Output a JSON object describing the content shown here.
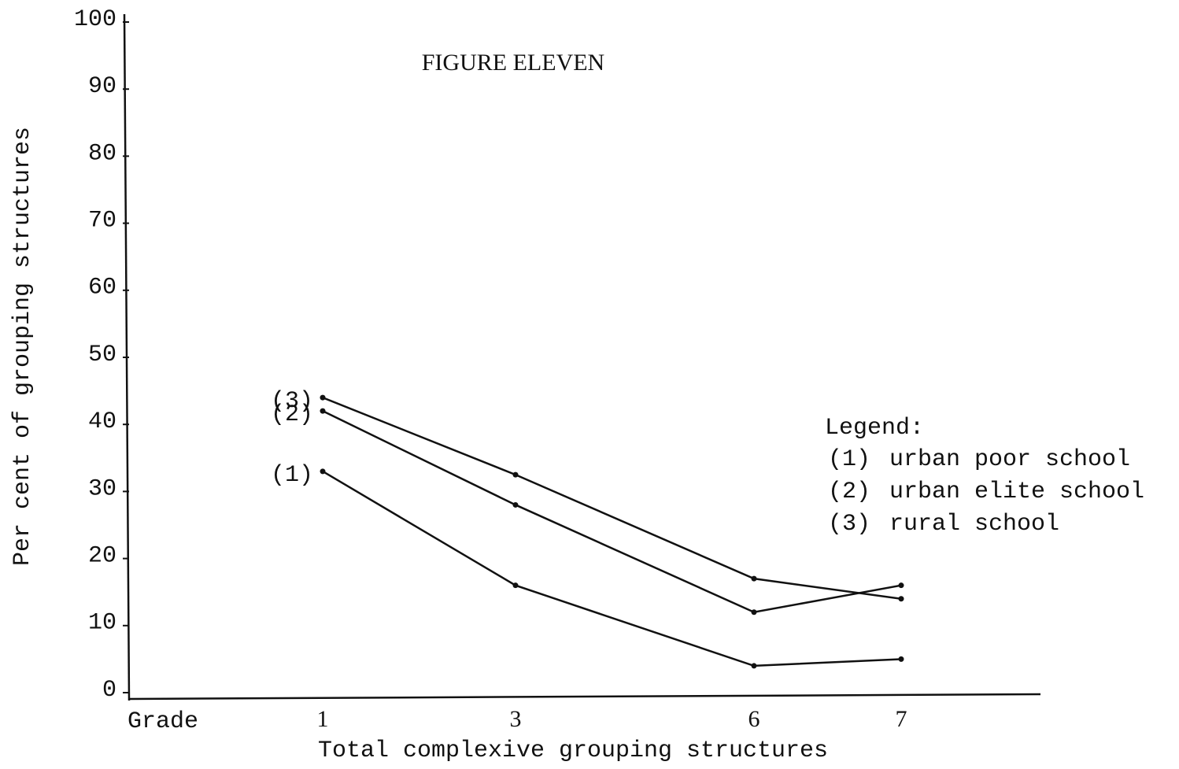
{
  "chart_data": {
    "type": "line",
    "title": "FIGURE ELEVEN",
    "ylabel": "Per cent of grouping structures",
    "xlabel": "Total complexive grouping structures",
    "xprefix": "Grade",
    "legend_title": "Legend:",
    "categories": [
      "1",
      "3",
      "6",
      "7"
    ],
    "series": [
      {
        "name": "urban poor school",
        "marker": "(1)",
        "color": "#111111",
        "values": [
          33,
          16,
          4,
          5
        ]
      },
      {
        "name": "urban elite school",
        "marker": "(2)",
        "color": "#111111",
        "values": [
          42,
          28,
          12,
          16
        ]
      },
      {
        "name": "rural school",
        "marker": "(3)",
        "color": "#111111",
        "values": [
          44,
          32.5,
          17,
          14
        ]
      }
    ],
    "ylim": [
      0,
      100
    ],
    "yticks": [
      0,
      10,
      20,
      30,
      40,
      50,
      60,
      70,
      80,
      90,
      100
    ]
  }
}
